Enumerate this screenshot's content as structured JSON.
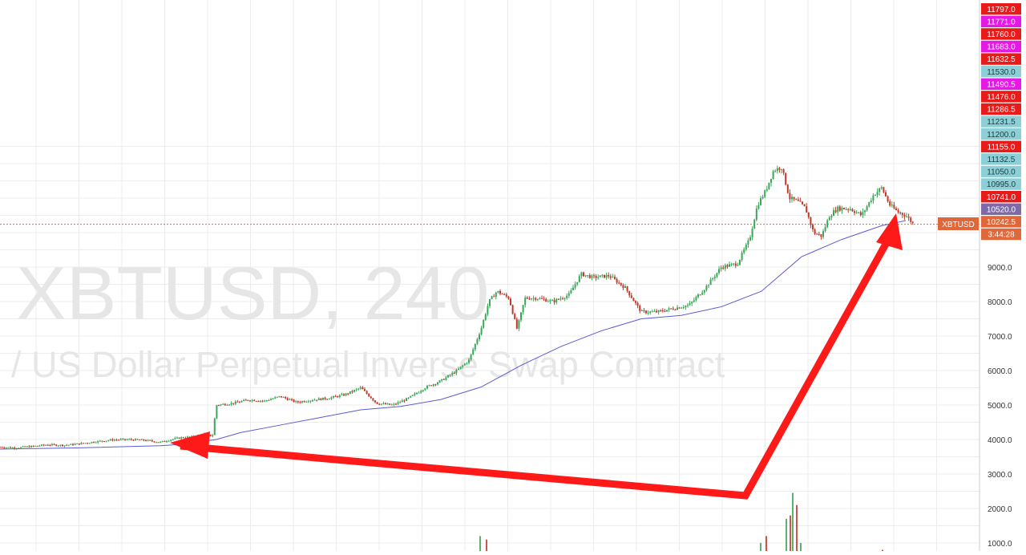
{
  "watermark": {
    "line1": "XBTUSD, 240",
    "line2": "/ US Dollar Perpetual Inverse Swap Contract"
  },
  "colors": {
    "up": "#3aa757",
    "down": "#c0392b",
    "ma": "#5b5bd6",
    "arrow": "#ff1a1a",
    "grid": "#ececec",
    "priceline": "#e0673a",
    "tag_red": "#e81b1b",
    "tag_magenta": "#e518e5",
    "tag_cyan": "#8ccfd6",
    "tag_purple": "#7e6aa8",
    "tag_orange": "#e0673a"
  },
  "price_axis": {
    "ticks": [
      "9000.0",
      "8000.0",
      "7000.0",
      "6000.0",
      "5000.0",
      "4000.0",
      "3000.0",
      "2000.0",
      "1000.0"
    ],
    "tags": [
      {
        "text": "11797.0",
        "color": "tag_red"
      },
      {
        "text": "11771.0",
        "color": "tag_magenta"
      },
      {
        "text": "11760.0",
        "color": "tag_red"
      },
      {
        "text": "11683.0",
        "color": "tag_magenta"
      },
      {
        "text": "11632.5",
        "color": "tag_red"
      },
      {
        "text": "11530.0",
        "color": "tag_cyan"
      },
      {
        "text": "11490.5",
        "color": "tag_magenta"
      },
      {
        "text": "11476.0",
        "color": "tag_red"
      },
      {
        "text": "11286.5",
        "color": "tag_red"
      },
      {
        "text": "11231.5",
        "color": "tag_cyan"
      },
      {
        "text": "11200.0",
        "color": "tag_cyan"
      },
      {
        "text": "11155.0",
        "color": "tag_red"
      },
      {
        "text": "11132.5",
        "color": "tag_cyan"
      },
      {
        "text": "11050.0",
        "color": "tag_cyan"
      },
      {
        "text": "10995.0",
        "color": "tag_cyan"
      },
      {
        "text": "10741.0",
        "color": "tag_red"
      },
      {
        "text": "10520.0",
        "color": "tag_purple"
      },
      {
        "text": "10242.5",
        "color": "tag_orange"
      },
      {
        "text": "3:44:28",
        "color": "tag_orange"
      }
    ],
    "symbol_label": "XBTUSD",
    "last_price": 10242.5
  },
  "chart_data": {
    "type": "line",
    "symbol": "XBTUSD",
    "interval": "240",
    "series": [
      {
        "name": "",
        "style": "candlestick",
        "x": [
          0,
          20,
          40,
          60,
          80,
          100,
          120,
          140,
          160,
          180,
          200,
          215,
          225,
          240,
          255,
          265,
          270,
          290,
          310,
          330,
          350,
          370,
          390,
          410,
          430,
          450,
          470,
          490,
          510,
          530,
          550,
          570,
          585,
          600,
          610,
          620,
          635,
          645,
          655,
          670,
          690,
          710,
          725,
          740,
          760,
          780,
          800,
          820,
          840,
          860,
          880,
          900,
          920,
          935,
          945,
          955,
          965,
          975,
          985,
          995,
          1005,
          1015,
          1025,
          1035,
          1045,
          1060,
          1075,
          1090,
          1100,
          1110,
          1120,
          1130,
          1140
        ],
        "y": [
          3780,
          3760,
          3800,
          3850,
          3830,
          3880,
          3940,
          3990,
          4000,
          3980,
          3920,
          4010,
          4050,
          4080,
          4150,
          4100,
          5000,
          5050,
          5150,
          5120,
          5250,
          5080,
          5150,
          5200,
          5300,
          5500,
          5050,
          5000,
          5200,
          5500,
          5700,
          6000,
          6300,
          7200,
          8000,
          8300,
          8100,
          7200,
          8100,
          8100,
          8000,
          8200,
          8800,
          8700,
          8750,
          8400,
          7700,
          7700,
          7800,
          7900,
          8400,
          9000,
          9100,
          9800,
          10800,
          11200,
          11800,
          11900,
          11000,
          10900,
          10700,
          10000,
          9900,
          10500,
          10700,
          10700,
          10500,
          11100,
          11300,
          10800,
          10600,
          10500,
          10242.5
        ]
      },
      {
        "name": "",
        "style": "moving-average",
        "x": [
          0,
          100,
          200,
          220,
          270,
          300,
          350,
          400,
          450,
          500,
          550,
          600,
          650,
          700,
          750,
          800,
          850,
          900,
          950,
          1000,
          1050,
          1100,
          1130
        ],
        "y": [
          3720,
          3760,
          3820,
          3850,
          4000,
          4200,
          4420,
          4640,
          4860,
          4960,
          5160,
          5520,
          6150,
          6700,
          7150,
          7500,
          7600,
          7850,
          8300,
          9300,
          9800,
          10200,
          10350
        ]
      },
      {
        "name": "",
        "style": "volume",
        "x": [
          598,
          606,
          948,
          955,
          980,
          985,
          988,
          993,
          998,
          1100
        ],
        "y": [
          1200,
          1100,
          1000,
          1200,
          1700,
          1800,
          2450,
          2100,
          1000,
          800
        ]
      }
    ],
    "xlim": [
      0,
      1145
    ],
    "ylim": [
      800,
      12000
    ],
    "xlabel": "",
    "ylabel": "",
    "title": "",
    "grid": true
  },
  "annotations": {
    "arrow_points": [
      [
        1113,
        290
      ],
      [
        930,
        618
      ],
      [
        225,
        556
      ]
    ]
  }
}
